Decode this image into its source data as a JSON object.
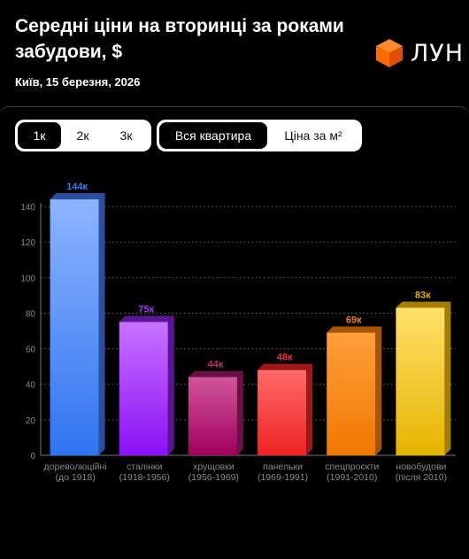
{
  "header": {
    "title": "Середні ціни на вторинці за роками забудови, $",
    "date": "Київ, 15 березня, 2026",
    "logo_text": "ЛУН"
  },
  "filters": {
    "rooms": [
      "1к",
      "2к",
      "3к"
    ],
    "rooms_selected": 0,
    "mode": [
      "Вся квартира",
      "Ціна за м²"
    ],
    "mode_selected": 0
  },
  "colors": {
    "background": "#000000",
    "logo_orange": "#ff6a00",
    "bars": [
      {
        "top": "#8eb4ff",
        "bottom": "#2f74f0",
        "side": "#2c4f9e",
        "label": "#3f7df2"
      },
      {
        "top": "#c873ff",
        "bottom": "#8b10f5",
        "side": "#5a1495",
        "label": "#a233ff"
      },
      {
        "top": "#d0559b",
        "bottom": "#a0005e",
        "side": "#6d1048",
        "label": "#c02a7e"
      },
      {
        "top": "#ff6b6b",
        "bottom": "#ee2222",
        "side": "#a01818",
        "label": "#f03232"
      },
      {
        "top": "#ff9e3c",
        "bottom": "#f07800",
        "side": "#a85400",
        "label": "#f08020"
      },
      {
        "top": "#ffe06a",
        "bottom": "#e6b400",
        "side": "#a47e00",
        "label": "#e8b000"
      }
    ]
  },
  "chart_data": {
    "type": "bar",
    "categories": [
      [
        "дореволюційні",
        "(до 1918)"
      ],
      [
        "сталінки",
        "(1918-1956)"
      ],
      [
        "хрущовки",
        "(1956-1969)"
      ],
      [
        "панельки",
        "(1969-1991)"
      ],
      [
        "спецпроєкти",
        "(1991-2010)"
      ],
      [
        "новобудови",
        "(після 2010)"
      ]
    ],
    "values": [
      144,
      75,
      44,
      48,
      69,
      83
    ],
    "value_labels": [
      "144к",
      "75к",
      "44к",
      "48к",
      "69к",
      "83к"
    ],
    "yticks": [
      0,
      20,
      40,
      60,
      80,
      100,
      120,
      140
    ],
    "ylim": [
      0,
      150
    ],
    "grid": "horizontal-dotted"
  }
}
